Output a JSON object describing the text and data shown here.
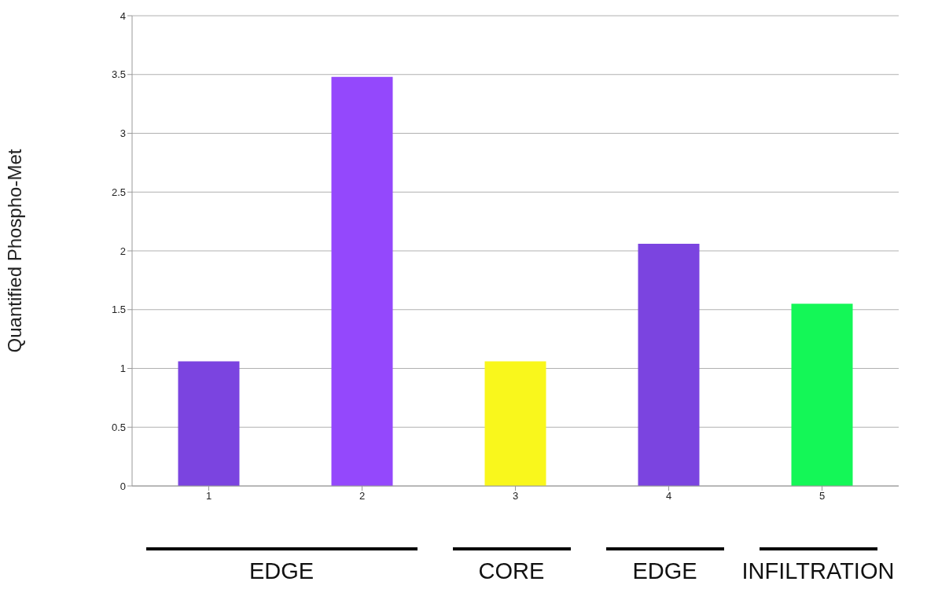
{
  "chart_data": {
    "type": "bar",
    "ylabel": "Quantified Phospho-Met",
    "categories": [
      "1",
      "2",
      "3",
      "4",
      "5"
    ],
    "values": [
      1.06,
      3.48,
      1.06,
      2.06,
      1.55
    ],
    "colors": [
      "#7b44e0",
      "#9448fc",
      "#f9f71c",
      "#7b44e0",
      "#14f757"
    ],
    "ylim": [
      0,
      4
    ],
    "yticks": [
      0,
      0.5,
      1,
      1.5,
      2,
      2.5,
      3,
      3.5,
      4
    ],
    "grid": "y",
    "annotations": [
      "EDGE",
      "CORE",
      "EDGE",
      "INFILTRATION"
    ]
  }
}
